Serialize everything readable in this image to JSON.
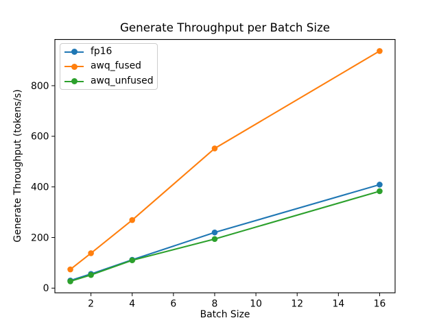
{
  "chart_data": {
    "type": "line",
    "title": "Generate Throughput per Batch Size",
    "xlabel": "Batch Size",
    "ylabel": "Generate Throughput (tokens/s)",
    "x": [
      1,
      2,
      4,
      8,
      16
    ],
    "series": [
      {
        "name": "fp16",
        "color": "#1f77b4",
        "values": [
          30,
          56,
          112,
          220,
          409
        ]
      },
      {
        "name": "awq_fused",
        "color": "#ff7f0e",
        "values": [
          74,
          138,
          269,
          552,
          937
        ]
      },
      {
        "name": "awq_unfused",
        "color": "#2ca02c",
        "values": [
          27,
          52,
          110,
          194,
          383
        ]
      }
    ],
    "x_ticks": [
      2,
      4,
      6,
      8,
      10,
      12,
      14,
      16
    ],
    "y_ticks": [
      0,
      200,
      400,
      600,
      800
    ],
    "xlim": [
      0.25,
      16.75
    ],
    "ylim": [
      -18.5,
      982.5
    ],
    "grid": false,
    "marker": "o",
    "legend": {
      "position": "upper-left",
      "entries": [
        "fp16",
        "awq_fused",
        "awq_unfused"
      ]
    },
    "colors": {
      "background": "#ffffff",
      "spine": "#000000",
      "text": "#000000"
    }
  }
}
